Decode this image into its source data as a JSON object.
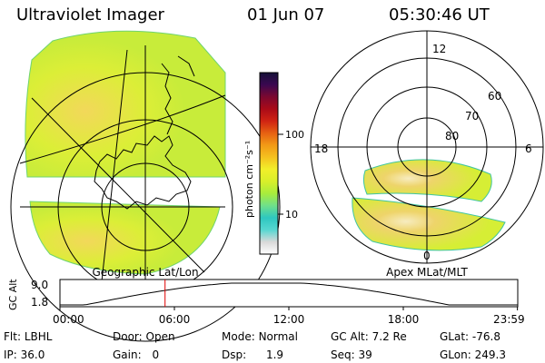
{
  "header": {
    "instrument": "Ultraviolet Imager",
    "date": "01 Jun 07",
    "time": "05:30:46 UT"
  },
  "left_panel": {
    "caption": "Geographic Lat/Lon"
  },
  "right_panel": {
    "caption": "Apex MLat/MLT",
    "mlt_labels": {
      "top": "12",
      "left": "18",
      "right": "6",
      "bottom": "0"
    },
    "lat_labels": [
      "60",
      "70",
      "80"
    ]
  },
  "colorbar": {
    "unit": "photon cm⁻²s⁻¹",
    "ticks": [
      "100",
      "10"
    ],
    "colors": [
      "#ffffff",
      "#d9d9d9",
      "#57d7d1",
      "#2ec7c0",
      "#6fe08a",
      "#a7ec3d",
      "#d8ef2a",
      "#f2ef2a",
      "#f5c21f",
      "#f29a16",
      "#e66012",
      "#d02413",
      "#aa0a18",
      "#7a0830",
      "#3a0850",
      "#151038"
    ]
  },
  "timeline": {
    "ylabel": "GC Alt",
    "ymax": "9.0",
    "ymin": "1.8",
    "ticks": [
      "00:00",
      "06:00",
      "12:00",
      "18:00",
      "23:59"
    ],
    "marker_hours": 5.51
  },
  "info": {
    "filter_label": "Flt:",
    "filter": "LBHL",
    "ip_label": "IP:",
    "ip": "36.0",
    "door_label": "Door:",
    "door": "Open",
    "gain_label": "Gain:",
    "gain": "0",
    "mode_label": "Mode:",
    "mode": "Normal",
    "dsp_label": "Dsp:",
    "dsp": "1.9",
    "gcalt_label": "GC Alt:",
    "gcalt": "7.2 Re",
    "seq_label": "Seq:",
    "seq": "39",
    "glat_label": "GLat:",
    "glat": "-76.8",
    "glon_label": "GLon:",
    "glon": "249.3"
  }
}
